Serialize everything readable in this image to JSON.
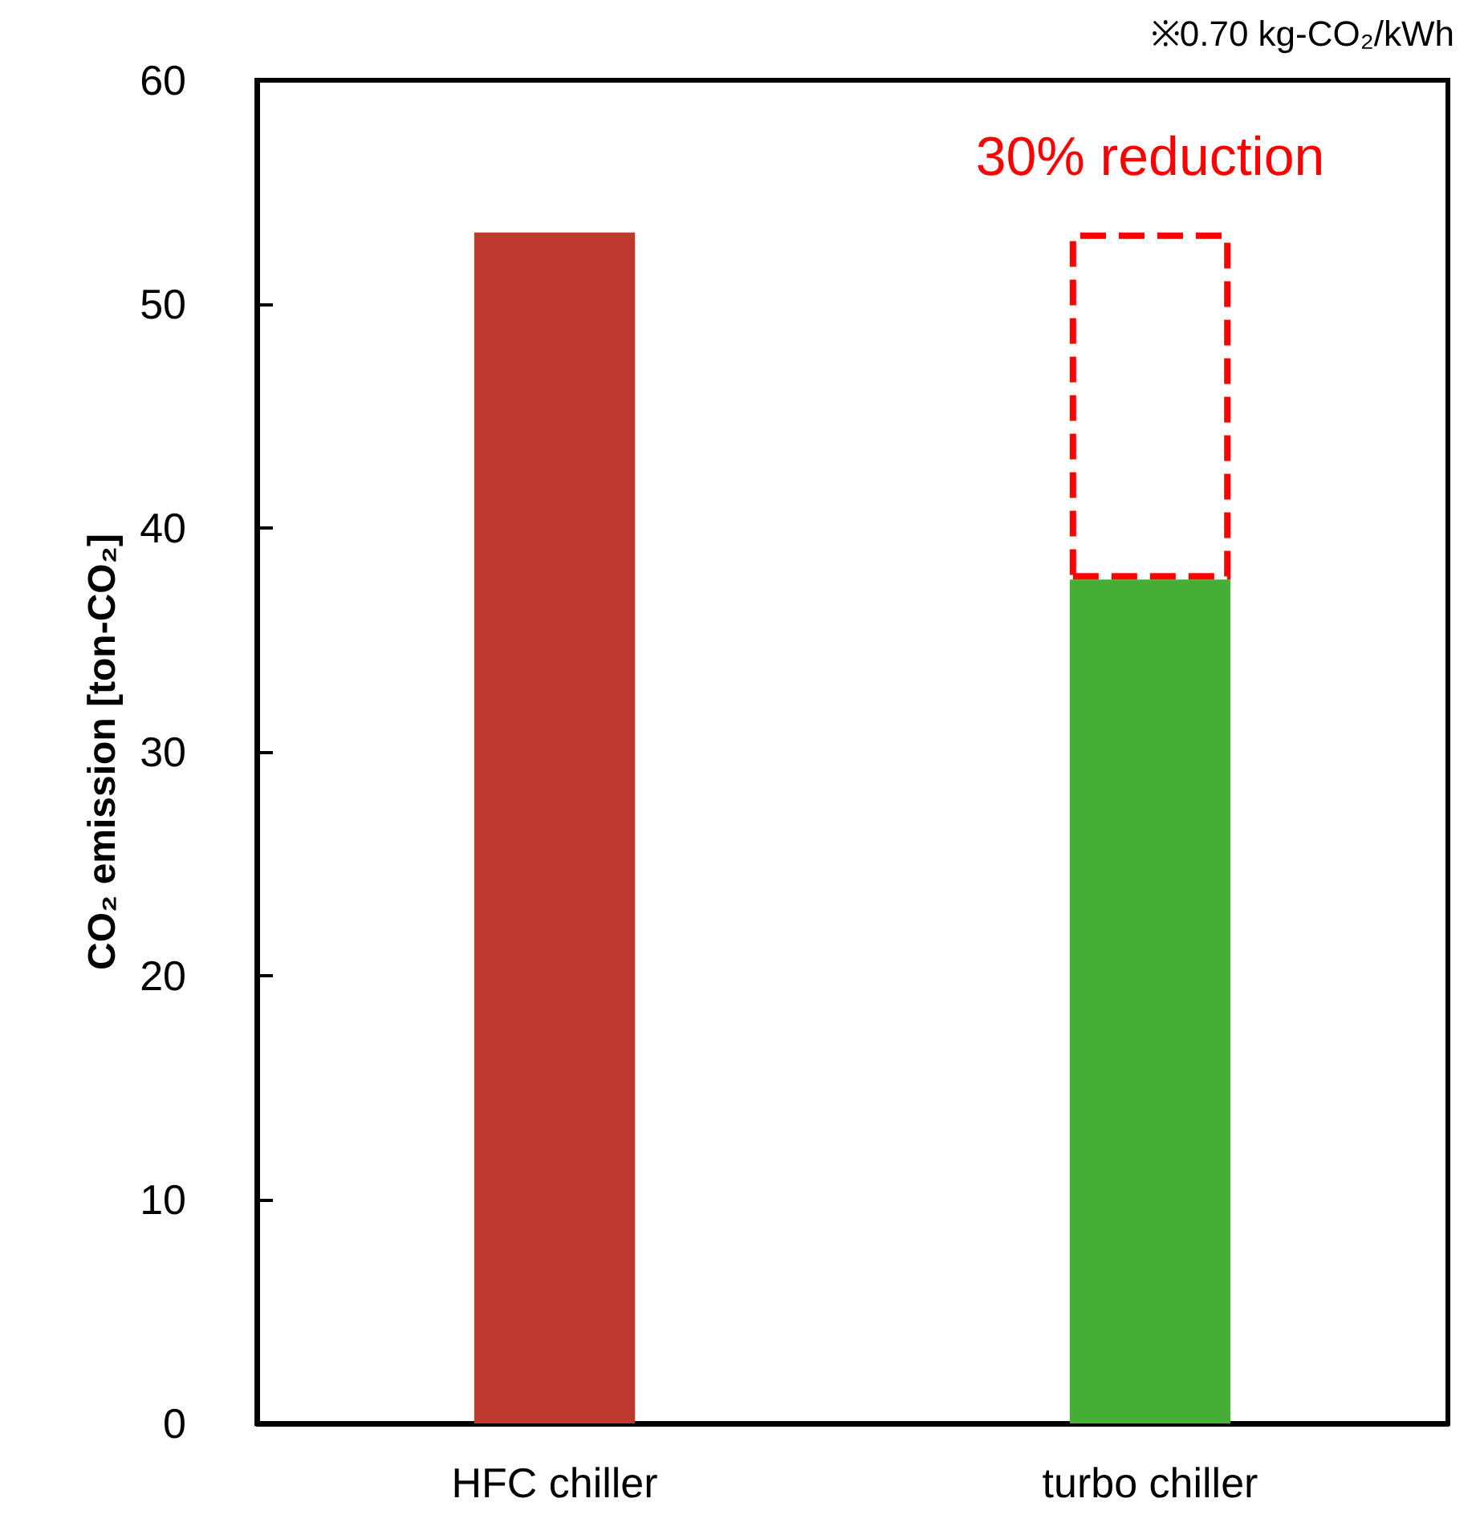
{
  "chart_data": {
    "type": "bar",
    "stacked": true,
    "categories": [
      "HFC chiller",
      "turbo chiller"
    ],
    "series": [
      {
        "colors": [
          "#c0392f",
          "#46ae37"
        ],
        "values": [
          53.2,
          37.7
        ]
      },
      {
        "color": "#ff0000",
        "line_style": "dashed",
        "values": [
          null,
          15.5
        ]
      }
    ],
    "ylabel": "CO₂ emission [ton-CO₂]",
    "ylim": [
      0,
      60
    ],
    "yticks": [
      0,
      10,
      20,
      30,
      40,
      50,
      60
    ],
    "grid": false,
    "annotations": [
      "※0.70 kg-CO₂/kWh",
      {
        "text": "30% reduction",
        "x": "turbo chiller",
        "y": 53.2
      }
    ]
  }
}
